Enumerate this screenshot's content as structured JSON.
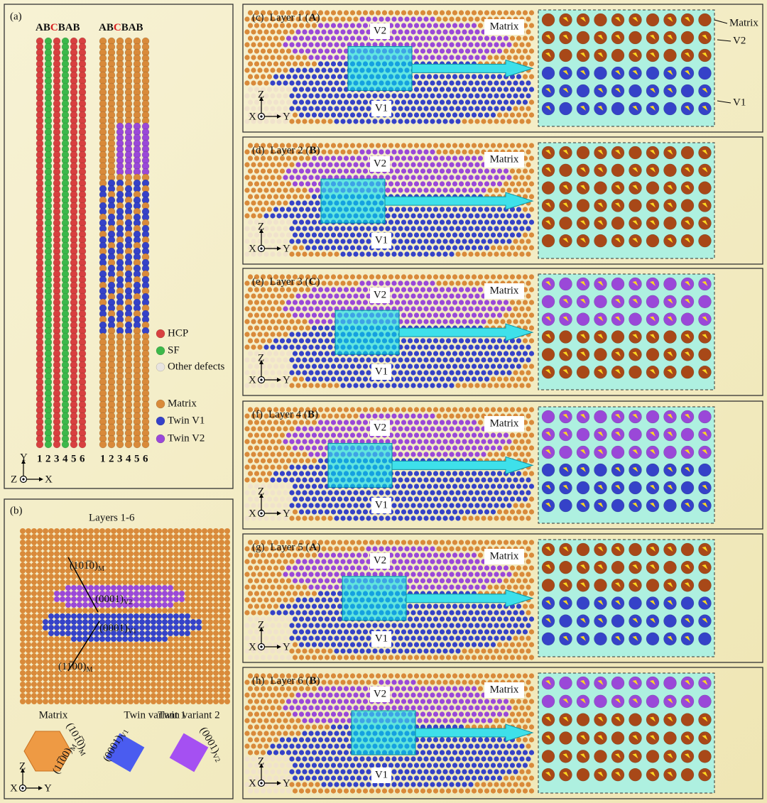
{
  "panel_a": {
    "tag": "(a)",
    "stackings": [
      {
        "prefix": "AB",
        "highlight": "C",
        "suffix": "BAB"
      },
      {
        "prefix": "AB",
        "highlight": "C",
        "suffix": "BAB"
      }
    ],
    "layer_numbers": [
      "1",
      "2",
      "3",
      "4",
      "5",
      "6"
    ],
    "legend": [
      "HCP",
      "SF",
      "Other defects",
      "Matrix",
      "Twin V1",
      "Twin V2"
    ],
    "axes": [
      "Y",
      "Z",
      "X"
    ]
  },
  "panel_b": {
    "tag": "(b)",
    "title": "Layers 1-6",
    "planes": [
      {
        "index": "(101̅0)",
        "sub": "M"
      },
      {
        "index": "(0001)",
        "sub": "V2"
      },
      {
        "index": "(0001)",
        "sub": "V1"
      },
      {
        "index": "(11̅00)",
        "sub": "M"
      }
    ],
    "variants": [
      "Matrix",
      "Twin variant 1",
      "Twin variant 2"
    ],
    "variant_planes": [
      {
        "index": "(101̅0)",
        "sub": "M"
      },
      {
        "index": "(11̅00)",
        "sub": "M"
      },
      {
        "index": "(0001)",
        "sub": "V1"
      },
      {
        "index": "(0001)",
        "sub": "V2"
      }
    ],
    "axes": [
      "Z",
      "X",
      "Y"
    ]
  },
  "layers": [
    {
      "tag": "(c)",
      "title": [
        "Layer 1 (",
        "A",
        ")"
      ],
      "labels": [
        "V2",
        "Matrix",
        "V1"
      ],
      "axes": [
        "Z",
        "X",
        "Y"
      ]
    },
    {
      "tag": "(d)",
      "title": [
        "Layer 2 (",
        "B",
        ")"
      ],
      "labels": [
        "V2",
        "Matrix",
        "V1"
      ],
      "axes": [
        "Z",
        "X",
        "Y"
      ]
    },
    {
      "tag": "(e)",
      "title": [
        "Layer 3 (",
        "C",
        ")"
      ],
      "labels": [
        "V2",
        "Matrix",
        "V1"
      ],
      "axes": [
        "Z",
        "X",
        "Y"
      ]
    },
    {
      "tag": "(f)",
      "title": [
        "Layer 4 (",
        "B",
        ")"
      ],
      "labels": [
        "V2",
        "Matrix",
        "V1"
      ],
      "axes": [
        "Z",
        "X",
        "Y"
      ]
    },
    {
      "tag": "(g)",
      "title": [
        "Layer 5 (",
        "A",
        ")"
      ],
      "labels": [
        "V2",
        "Matrix",
        "V1"
      ],
      "axes": [
        "Z",
        "X",
        "Y"
      ]
    },
    {
      "tag": "(h)",
      "title": [
        "Layer 6 (",
        "B",
        ")"
      ],
      "labels": [
        "V2",
        "Matrix",
        "V1"
      ],
      "axes": [
        "Z",
        "X",
        "Y"
      ]
    }
  ],
  "zoom_labels": [
    "Matrix",
    "V2",
    "V1"
  ]
}
